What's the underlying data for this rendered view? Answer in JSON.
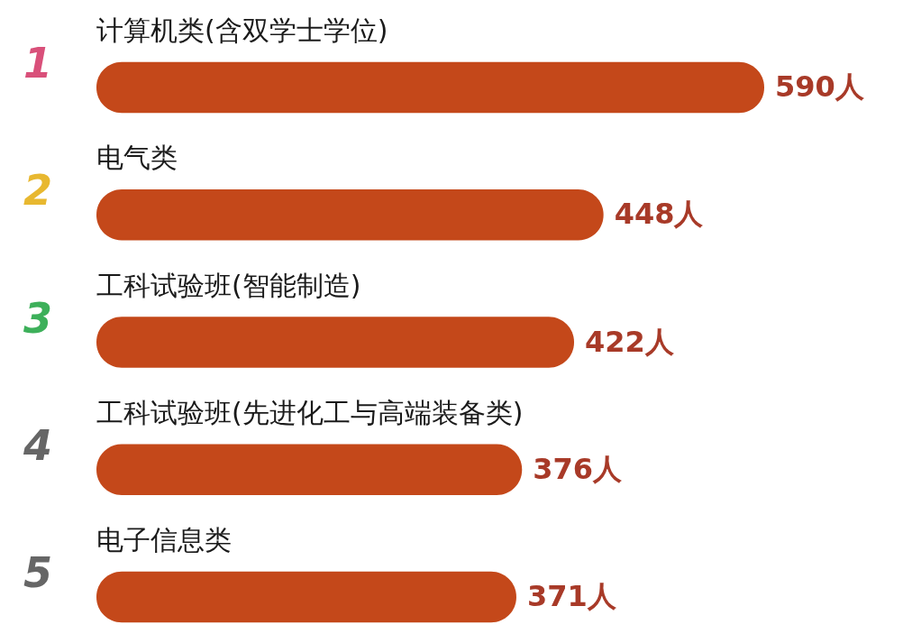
{
  "chart_data": {
    "type": "bar",
    "orientation": "horizontal",
    "categories": [
      "计算机类(含双学士学位)",
      "电气类",
      "工科试验班(智能制造)",
      "工科试验班(先进化工与高端装备类)",
      "电子信息类"
    ],
    "values": [
      590,
      448,
      422,
      376,
      371
    ],
    "value_labels": [
      "590人",
      "448人",
      "422人",
      "376人",
      "371人"
    ],
    "color": "#c4481a",
    "annotations": [
      "1",
      "2",
      "3",
      "4",
      "5"
    ]
  }
}
